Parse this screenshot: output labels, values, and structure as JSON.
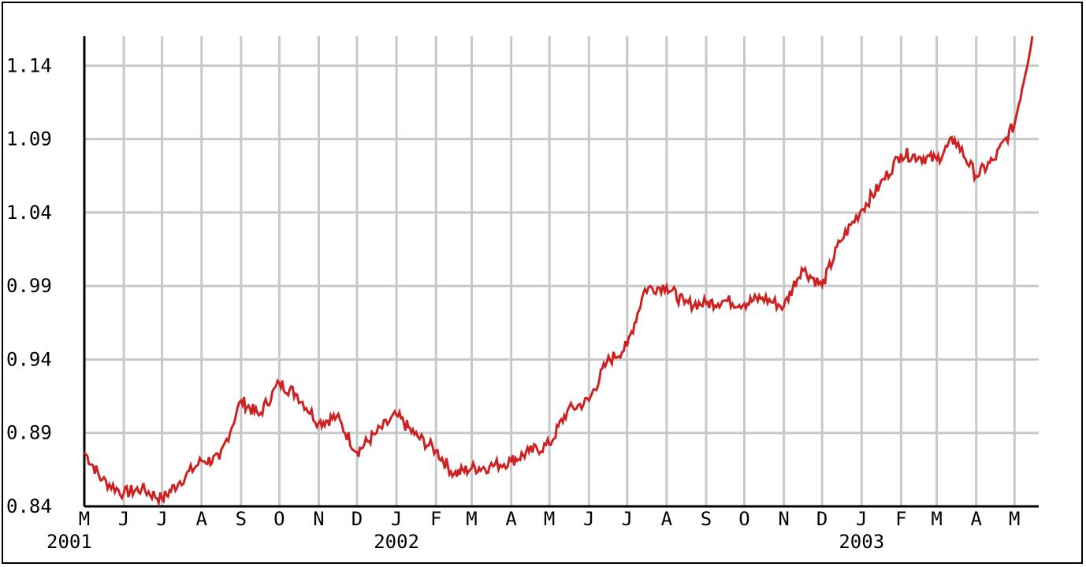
{
  "chart_data": {
    "type": "line",
    "title": "",
    "xlabel": "",
    "ylabel": "",
    "ylim": [
      0.84,
      1.16
    ],
    "y_ticks": [
      "0.84",
      "0.89",
      "0.94",
      "0.99",
      "1.04",
      "1.09",
      "1.14"
    ],
    "month_ticks": [
      "M",
      "J",
      "J",
      "A",
      "S",
      "O",
      "N",
      "D",
      "J",
      "F",
      "M",
      "A",
      "M",
      "J",
      "J",
      "A",
      "S",
      "O",
      "N",
      "D",
      "J",
      "F",
      "M",
      "A",
      "M"
    ],
    "year_labels": [
      "2001",
      "2002",
      "2003"
    ],
    "grid": true,
    "colors": {
      "line": "#cc2222",
      "grid": "#c8c8c8",
      "axis": "#000000"
    },
    "series": [
      {
        "x": [
          "2001-05-01",
          "2001-05-15",
          "2001-06-01",
          "2001-06-15",
          "2001-07-01",
          "2001-07-15",
          "2001-08-01",
          "2001-08-15",
          "2001-09-01",
          "2001-09-15",
          "2001-10-01",
          "2001-10-15",
          "2001-11-01",
          "2001-11-15",
          "2001-12-01",
          "2001-12-15",
          "2002-01-01",
          "2002-01-15",
          "2002-02-01",
          "2002-02-15",
          "2002-03-01",
          "2002-03-15",
          "2002-04-01",
          "2002-04-15",
          "2002-05-01",
          "2002-05-15",
          "2002-06-01",
          "2002-06-15",
          "2002-07-01",
          "2002-07-15",
          "2002-08-01",
          "2002-08-15",
          "2002-09-01",
          "2002-09-15",
          "2002-10-01",
          "2002-10-15",
          "2002-11-01",
          "2002-11-15",
          "2002-12-01",
          "2002-12-15",
          "2003-01-01",
          "2003-01-15",
          "2003-02-01",
          "2003-02-15",
          "2003-03-01",
          "2003-03-15",
          "2003-04-01",
          "2003-04-15",
          "2003-05-01",
          "2003-05-15"
        ],
        "y": [
          0.877,
          0.858,
          0.849,
          0.852,
          0.845,
          0.857,
          0.871,
          0.872,
          0.912,
          0.902,
          0.924,
          0.916,
          0.897,
          0.901,
          0.877,
          0.889,
          0.902,
          0.889,
          0.878,
          0.862,
          0.866,
          0.867,
          0.871,
          0.877,
          0.882,
          0.905,
          0.912,
          0.938,
          0.949,
          0.988,
          0.99,
          0.978,
          0.978,
          0.98,
          0.978,
          0.982,
          0.976,
          1.002,
          0.99,
          1.02,
          1.042,
          1.058,
          1.08,
          1.078,
          1.076,
          1.09,
          1.065,
          1.076,
          1.1,
          1.16
        ]
      }
    ]
  }
}
